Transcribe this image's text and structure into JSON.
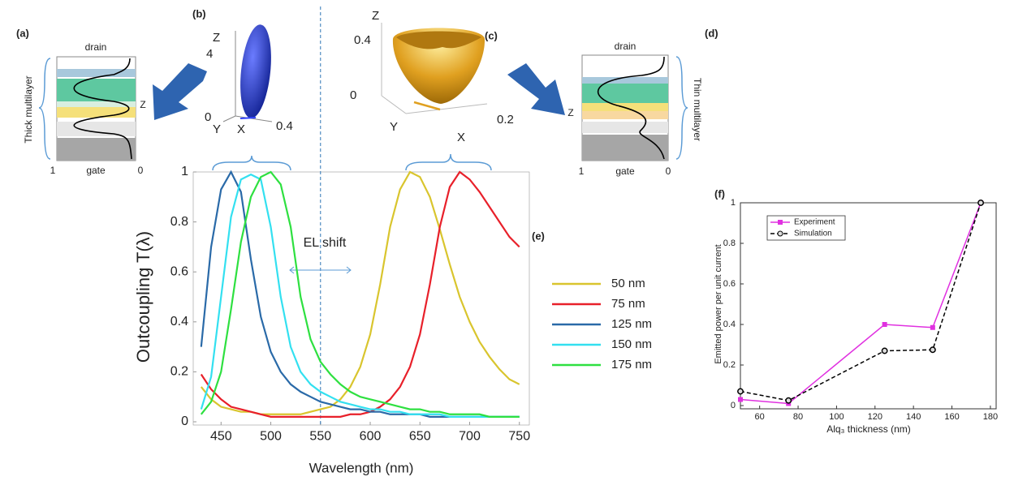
{
  "chart_data": [
    {
      "type": "line",
      "panel_label": "(e)",
      "xlabel": "Wavelength (nm)",
      "ylabel": "Outcoupling T(λ)",
      "annotation": "EL shift",
      "marker_line_x": 550,
      "x": [
        430,
        440,
        450,
        460,
        470,
        480,
        490,
        500,
        510,
        520,
        530,
        540,
        550,
        560,
        570,
        580,
        590,
        600,
        610,
        620,
        630,
        640,
        650,
        660,
        670,
        680,
        690,
        700,
        710,
        720,
        730,
        740,
        750
      ],
      "series": [
        {
          "name": "50 nm",
          "color": "#d9c52e",
          "values": [
            0.14,
            0.09,
            0.06,
            0.05,
            0.04,
            0.04,
            0.03,
            0.03,
            0.03,
            0.03,
            0.03,
            0.04,
            0.05,
            0.06,
            0.09,
            0.14,
            0.22,
            0.35,
            0.55,
            0.78,
            0.93,
            1.0,
            0.98,
            0.9,
            0.77,
            0.63,
            0.5,
            0.4,
            0.32,
            0.26,
            0.21,
            0.17,
            0.15
          ]
        },
        {
          "name": "75 nm",
          "color": "#e8202a",
          "values": [
            0.19,
            0.13,
            0.09,
            0.06,
            0.05,
            0.04,
            0.03,
            0.02,
            0.02,
            0.02,
            0.02,
            0.02,
            0.02,
            0.02,
            0.02,
            0.03,
            0.03,
            0.04,
            0.06,
            0.09,
            0.14,
            0.22,
            0.35,
            0.55,
            0.78,
            0.94,
            1.0,
            0.97,
            0.92,
            0.86,
            0.8,
            0.74,
            0.7
          ]
        },
        {
          "name": "125 nm",
          "color": "#2a6aa8",
          "values": [
            0.3,
            0.7,
            0.93,
            1.0,
            0.92,
            0.65,
            0.42,
            0.28,
            0.2,
            0.15,
            0.12,
            0.1,
            0.08,
            0.07,
            0.06,
            0.05,
            0.05,
            0.04,
            0.04,
            0.03,
            0.03,
            0.03,
            0.03,
            0.02,
            0.02,
            0.02,
            0.02,
            0.02,
            0.02,
            0.02,
            0.02,
            0.02,
            0.02
          ]
        },
        {
          "name": "150 nm",
          "color": "#33e0f0",
          "values": [
            0.05,
            0.18,
            0.5,
            0.82,
            0.97,
            0.99,
            0.97,
            0.78,
            0.5,
            0.3,
            0.2,
            0.15,
            0.12,
            0.1,
            0.08,
            0.07,
            0.06,
            0.05,
            0.05,
            0.04,
            0.04,
            0.03,
            0.03,
            0.03,
            0.03,
            0.02,
            0.02,
            0.02,
            0.02,
            0.02,
            0.02,
            0.02,
            0.02
          ]
        },
        {
          "name": "175 nm",
          "color": "#2ee040",
          "values": [
            0.03,
            0.08,
            0.2,
            0.45,
            0.72,
            0.9,
            0.98,
            1.0,
            0.95,
            0.78,
            0.5,
            0.33,
            0.24,
            0.19,
            0.15,
            0.12,
            0.1,
            0.09,
            0.08,
            0.07,
            0.06,
            0.05,
            0.05,
            0.04,
            0.04,
            0.03,
            0.03,
            0.03,
            0.03,
            0.02,
            0.02,
            0.02,
            0.02
          ]
        }
      ],
      "xlim": [
        422,
        760
      ],
      "ylim": [
        0,
        1
      ],
      "xticks": [
        450,
        500,
        550,
        600,
        650,
        700,
        750
      ],
      "yticks": [
        0,
        0.2,
        0.4,
        0.6,
        0.8,
        1
      ]
    },
    {
      "type": "line",
      "panel_label": "(f)",
      "xlabel": "Alq₃ thickness (nm)",
      "ylabel": "Emitted power per unit current",
      "x": [
        50,
        75,
        125,
        150,
        175
      ],
      "series": [
        {
          "name": "Experiment",
          "color": "#e030e0",
          "marker": "square",
          "line_style": "solid",
          "values": [
            0.03,
            0.01,
            0.4,
            0.385,
            1
          ]
        },
        {
          "name": "Simulation",
          "color": "#000000",
          "marker": "circle",
          "line_style": "dashed",
          "values": [
            0.07,
            0.025,
            0.27,
            0.275,
            1
          ]
        }
      ],
      "xlim": [
        50,
        183
      ],
      "ylim": [
        0,
        1
      ],
      "xticks": [
        60,
        80,
        100,
        120,
        140,
        160,
        180
      ],
      "yticks": [
        0,
        0.2,
        0.4,
        0.6,
        0.8,
        1
      ]
    }
  ],
  "panels": {
    "a": {
      "label": "(a)",
      "top": "drain",
      "bottom": "gate",
      "side": "Thick multilayer",
      "axis": "Z",
      "left": "1",
      "right": "0"
    },
    "b": {
      "label": "(b)",
      "z": "Z",
      "zmax": "4",
      "zmin": "0",
      "y": "Y",
      "x": "X",
      "xmax": "0.4"
    },
    "c": {
      "label": "(c)",
      "z": "Z",
      "zmax": "0.4",
      "zmin": "0",
      "y": "Y",
      "x": "X",
      "xmax": "0.2"
    },
    "d": {
      "label": "(d)",
      "top": "drain",
      "bottom": "gate",
      "side": "Thin multilayer",
      "axis": "Z",
      "left": "1",
      "right": "0"
    }
  }
}
